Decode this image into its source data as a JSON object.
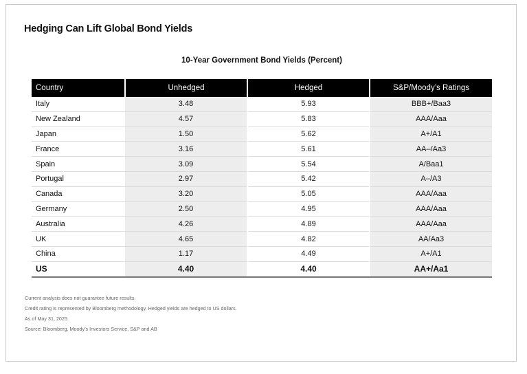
{
  "title": "Hedging Can Lift Global Bond Yields",
  "table_title": "10-Year Government Bond Yields (Percent)",
  "columns": [
    "Country",
    "Unhedged",
    "Hedged",
    "S&P/Moody’s Ratings"
  ],
  "rows": [
    {
      "country": "Italy",
      "unhedged": "3.48",
      "hedged": "5.93",
      "rating": "BBB+/Baa3"
    },
    {
      "country": "New Zealand",
      "unhedged": "4.57",
      "hedged": "5.83",
      "rating": "AAA/Aaa"
    },
    {
      "country": "Japan",
      "unhedged": "1.50",
      "hedged": "5.62",
      "rating": "A+/A1"
    },
    {
      "country": "France",
      "unhedged": "3.16",
      "hedged": "5.61",
      "rating": "AA–/Aa3"
    },
    {
      "country": "Spain",
      "unhedged": "3.09",
      "hedged": "5.54",
      "rating": "A/Baa1"
    },
    {
      "country": "Portugal",
      "unhedged": "2.97",
      "hedged": "5.42",
      "rating": "A–/A3"
    },
    {
      "country": "Canada",
      "unhedged": "3.20",
      "hedged": "5.05",
      "rating": "AAA/Aaa"
    },
    {
      "country": "Germany",
      "unhedged": "2.50",
      "hedged": "4.95",
      "rating": "AAA/Aaa"
    },
    {
      "country": "Australia",
      "unhedged": "4.26",
      "hedged": "4.89",
      "rating": "AAA/Aaa"
    },
    {
      "country": "UK",
      "unhedged": "4.65",
      "hedged": "4.82",
      "rating": "AA/Aa3"
    },
    {
      "country": "China",
      "unhedged": "1.17",
      "hedged": "4.49",
      "rating": "A+/A1"
    },
    {
      "country": "US",
      "unhedged": "4.40",
      "hedged": "4.40",
      "rating": "AA+/Aa1"
    }
  ],
  "notes": [
    "Current analysis does not guarantee future results.",
    "Credit rating is represented by Bloomberg methodology. Hedged yields are hedged to US dollars.",
    "As of May 31, 2025",
    "Source: Bloomberg, Moody’s Investors Service, S&P and AB"
  ]
}
